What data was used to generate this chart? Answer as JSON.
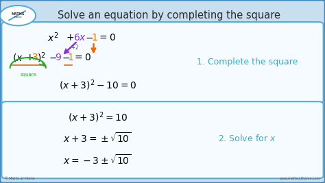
{
  "title": "Solve an equation by completing the square",
  "bg_color": "#c8dff0",
  "box_bg": "#f5fbff",
  "box_border": "#5aaad5",
  "title_color": "#2c2c2c",
  "step1_label": "1. Complete the square",
  "step2_label": "2. Solve for $x$",
  "step1_color": "#30b0c8",
  "step2_color": "#30b0c8",
  "color_6x": "#8833cc",
  "color_orange": "#ee6600",
  "color_9": "#8833cc",
  "color_green": "#22aa22",
  "footer_left": "© Maths at Home",
  "footer_right": "www.mathsathome.com",
  "outer_border": "#4488bb"
}
